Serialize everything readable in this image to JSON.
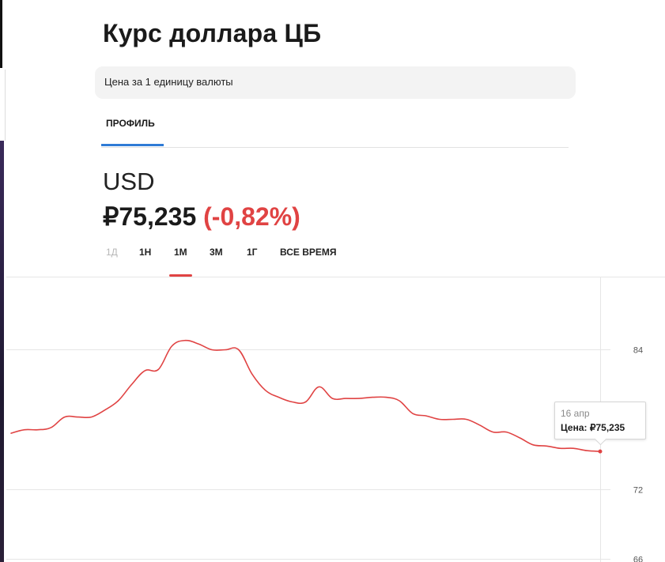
{
  "page": {
    "title": "Курс доллара ЦБ",
    "notice": "Цена за 1 единицу валюты"
  },
  "tabs": [
    {
      "label": "ПРОФИЛЬ",
      "active": true
    }
  ],
  "quote": {
    "ticker": "USD",
    "price": "₽75,235",
    "change": "(-0,82%)",
    "change_color": "#e04343"
  },
  "periods": [
    {
      "label": "1Д",
      "disabled": true
    },
    {
      "label": "1Н"
    },
    {
      "label": "1М",
      "active": true
    },
    {
      "label": "3М"
    },
    {
      "label": "1Г"
    },
    {
      "label": "ВСЕ ВРЕМЯ"
    }
  ],
  "tooltip": {
    "date": "16 апр",
    "value": "Цена: ₽75,235"
  },
  "chart_data": {
    "type": "line",
    "series": [
      {
        "color": "#e04343",
        "values": [
          76.8,
          77.1,
          77.1,
          77.3,
          78.2,
          78.2,
          78.2,
          78.8,
          79.6,
          81.0,
          82.2,
          82.3,
          84.3,
          84.8,
          84.5,
          84.0,
          84.0,
          84.0,
          81.9,
          80.5,
          79.9,
          79.5,
          79.5,
          80.8,
          79.8,
          79.8,
          79.8,
          79.9,
          79.9,
          79.6,
          78.5,
          78.3,
          78.0,
          78.0,
          78.0,
          77.5,
          76.9,
          76.9,
          76.4,
          75.8,
          75.7,
          75.5,
          75.5,
          75.3,
          75.235
        ]
      }
    ],
    "y_ticks": [
      84,
      72,
      66
    ],
    "ylim": [
      65.7,
      90.3
    ],
    "grid": true,
    "tooltip_index": 44
  }
}
